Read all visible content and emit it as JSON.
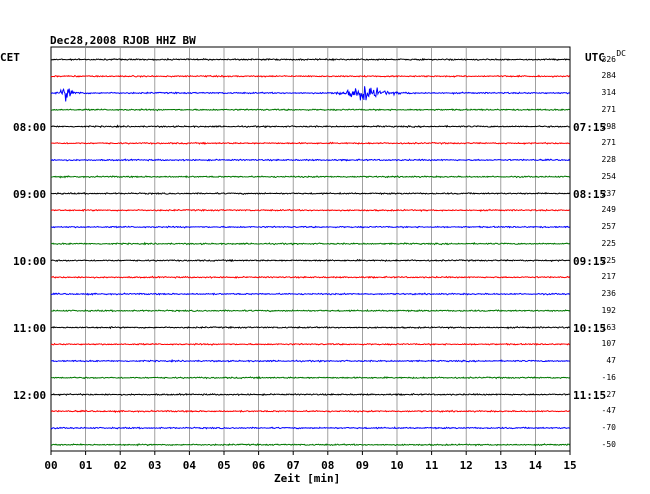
{
  "header": {
    "title": "Dec28,2008   RJOB HHZ BW",
    "left_label": "CET",
    "right_label": "UTC",
    "dc_label": "DC"
  },
  "footer": {
    "xlabel": "Zeit [min]"
  },
  "chart_data": {
    "type": "line",
    "title": "Dec28,2008   RJOB HHZ BW",
    "xlabel": "Zeit [min]",
    "xlim": [
      0,
      15
    ],
    "x_ticks": [
      "00",
      "01",
      "02",
      "03",
      "04",
      "05",
      "06",
      "07",
      "08",
      "09",
      "10",
      "11",
      "12",
      "13",
      "14",
      "15"
    ],
    "grid": true,
    "row_count": 24,
    "trace_colors": [
      "#000000",
      "#ff0000",
      "#0000ff",
      "#007700"
    ],
    "left_time_labels": [
      {
        "row": 4,
        "label": "08:00"
      },
      {
        "row": 8,
        "label": "09:00"
      },
      {
        "row": 12,
        "label": "10:00"
      },
      {
        "row": 16,
        "label": "11:00"
      },
      {
        "row": 20,
        "label": "12:00"
      }
    ],
    "right_time_labels": [
      {
        "row": 4,
        "label": "07:15"
      },
      {
        "row": 8,
        "label": "08:15"
      },
      {
        "row": 12,
        "label": "09:15"
      },
      {
        "row": 16,
        "label": "10:15"
      },
      {
        "row": 20,
        "label": "11:15"
      }
    ],
    "dc_offsets": [
      "326",
      "284",
      "314",
      "271",
      "298",
      "271",
      "228",
      "254",
      "237",
      "249",
      "257",
      "225",
      "225",
      "217",
      "236",
      "192",
      "163",
      "107",
      "47",
      "-16",
      "-27",
      "-47",
      "-70",
      "-50"
    ],
    "events": [
      {
        "row": 2,
        "start_min": 0.2,
        "end_min": 1.1,
        "peak_min": 0.45
      },
      {
        "row": 2,
        "start_min": 8.0,
        "end_min": 10.5,
        "peak_min": 9.05
      }
    ]
  }
}
